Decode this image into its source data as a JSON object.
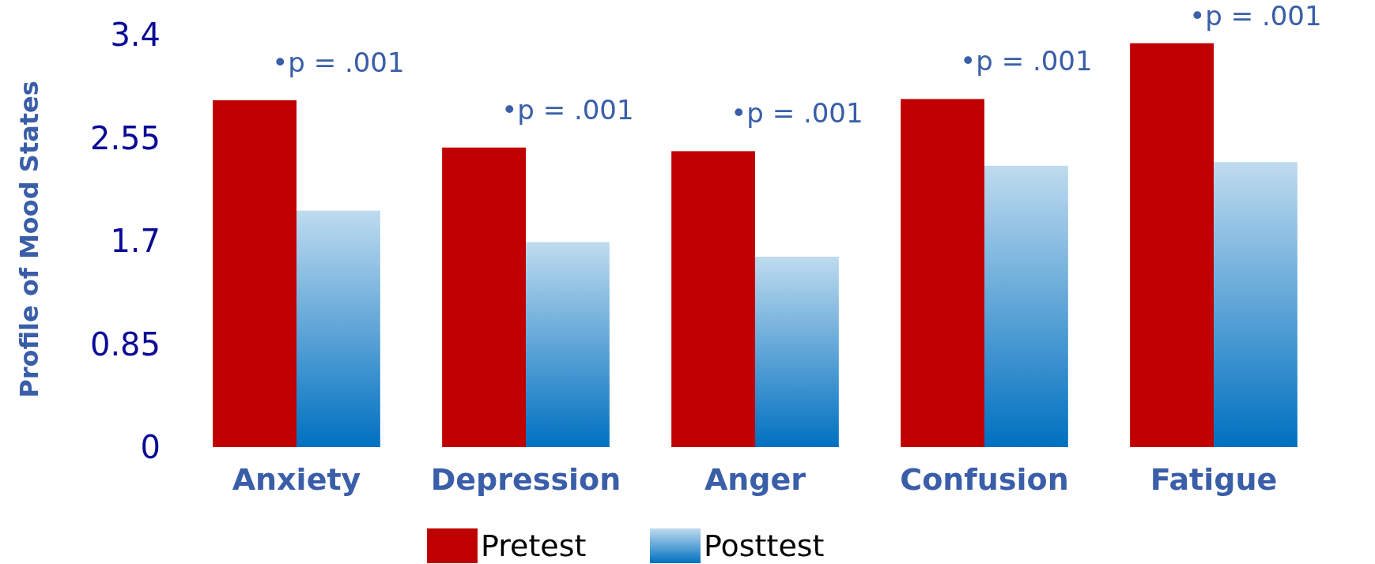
{
  "chart_data": {
    "type": "bar",
    "ylabel": "Profile of Mood States",
    "categories": [
      "Anxiety",
      "Depression",
      "Anger",
      "Confusion",
      "Fatigue"
    ],
    "series": [
      {
        "name": "Pretest",
        "color": "#c00000",
        "values": [
          2.86,
          2.47,
          2.44,
          2.87,
          3.33
        ]
      },
      {
        "name": "Posttest",
        "color": "#0070c0",
        "values": [
          1.95,
          1.69,
          1.57,
          2.32,
          2.35
        ]
      }
    ],
    "ylim": [
      0,
      3.4
    ],
    "yticks": [
      0,
      0.85,
      1.7,
      2.55,
      3.4
    ],
    "grid": false,
    "legend": "bottom",
    "annotations": [
      "•p = .001",
      "•p = .001",
      "•p = .001",
      "•p = .001",
      "•p = .001"
    ]
  }
}
